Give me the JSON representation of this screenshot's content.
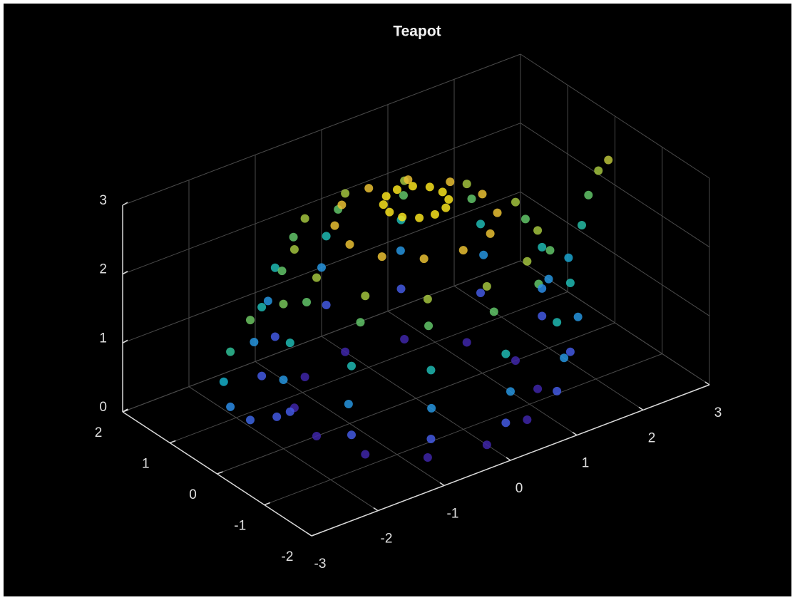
{
  "chart_data": {
    "type": "scatter3",
    "title": "Teapot",
    "x": [
      1.5,
      1.3,
      0.75,
      0,
      -0.75,
      -1.3,
      -1.5,
      -1.3,
      -0.75,
      0,
      0.75,
      1.3,
      1.9,
      1.65,
      0.95,
      0,
      -0.95,
      -1.65,
      -1.9,
      -1.65,
      -0.95,
      0,
      0.95,
      1.65,
      2,
      1.73,
      1,
      0,
      -1,
      -1.73,
      -2,
      -1.73,
      -1,
      0,
      1,
      1.73,
      1.9,
      1.65,
      0.95,
      0,
      -0.95,
      -1.65,
      -1.9,
      -1.65,
      -0.95,
      0,
      0.95,
      1.65,
      1.65,
      1.43,
      0.83,
      0,
      -0.83,
      -1.43,
      -1.65,
      -1.43,
      -0.83,
      0,
      0.83,
      1.43,
      1.5,
      1.3,
      0.75,
      0,
      -0.75,
      -1.3,
      -1.5,
      -1.3,
      -0.75,
      0,
      0.75,
      1.3,
      1,
      0.87,
      0.5,
      0,
      -0.5,
      -0.87,
      -1,
      -0.87,
      -0.5,
      0,
      0.5,
      0.87,
      0.4,
      0.35,
      0.2,
      0,
      -0.2,
      -0.35,
      -0.4,
      -0.35,
      -0.2,
      0,
      0.2,
      0.35,
      -2,
      -2.5,
      -2.8,
      -2.9,
      -2.8,
      -2.5,
      -2.1,
      1.9,
      2.3,
      2.5,
      2.6,
      2.75,
      2.9
    ],
    "y": [
      0,
      0.75,
      1.3,
      1.5,
      1.3,
      0.75,
      0,
      -0.75,
      -1.3,
      -1.5,
      -1.3,
      -0.75,
      0,
      0.95,
      1.65,
      1.9,
      1.65,
      0.95,
      0,
      -0.95,
      -1.65,
      -1.9,
      -1.65,
      -0.95,
      0,
      1,
      1.73,
      2,
      1.73,
      1,
      0,
      -1,
      -1.73,
      -2,
      -1.73,
      -1,
      0,
      0.95,
      1.65,
      1.9,
      1.65,
      0.95,
      0,
      -0.95,
      -1.65,
      -1.9,
      -1.65,
      -0.95,
      0,
      0.83,
      1.43,
      1.65,
      1.43,
      0.83,
      0,
      -0.83,
      -1.43,
      -1.65,
      -1.43,
      -0.83,
      0,
      0.75,
      1.3,
      1.5,
      1.3,
      0.75,
      0,
      -0.75,
      -1.3,
      -1.5,
      -1.3,
      -0.75,
      0,
      0.5,
      0.87,
      1,
      0.87,
      0.5,
      0,
      -0.5,
      -0.87,
      -1,
      -0.87,
      -0.5,
      0,
      0.2,
      0.35,
      0.4,
      0.35,
      0.2,
      0,
      -0.2,
      -0.35,
      -0.4,
      -0.35,
      -0.2,
      0,
      0,
      0,
      0,
      0,
      0,
      0,
      0,
      0,
      0,
      0,
      0,
      0
    ],
    "z": [
      0,
      0,
      0,
      0,
      0,
      0,
      0,
      0,
      0,
      0,
      0,
      0,
      0.5,
      0.5,
      0.5,
      0.5,
      0.5,
      0.5,
      0.5,
      0.5,
      0.5,
      0.5,
      0.5,
      0.5,
      1,
      1,
      1,
      1,
      1,
      1,
      1,
      1,
      1,
      1,
      1,
      1,
      1.5,
      1.5,
      1.5,
      1.5,
      1.5,
      1.5,
      1.5,
      1.5,
      1.5,
      1.5,
      1.5,
      1.5,
      2,
      2,
      2,
      2,
      2,
      2,
      2,
      2,
      2,
      2,
      2,
      2,
      2.3,
      2.3,
      2.3,
      2.3,
      2.3,
      2.3,
      2.3,
      2.3,
      2.3,
      2.3,
      2.3,
      2.3,
      2.6,
      2.6,
      2.6,
      2.6,
      2.6,
      2.6,
      2.6,
      2.6,
      2.6,
      2.6,
      2.6,
      2.6,
      2.85,
      2.85,
      2.85,
      2.85,
      2.85,
      2.85,
      2.85,
      2.85,
      2.85,
      2.85,
      2.85,
      2.85,
      2.1,
      2.05,
      1.7,
      1.3,
      0.9,
      0.6,
      0.5,
      0.9,
      1.2,
      1.6,
      2.0,
      2.3,
      2.4
    ],
    "xlim": [
      -3,
      3
    ],
    "ylim": [
      -2,
      2
    ],
    "zlim": [
      0,
      3
    ],
    "xticks": [
      -3,
      -2,
      -1,
      0,
      1,
      2,
      3
    ],
    "yticks": [
      -2,
      -1,
      0,
      1,
      2
    ],
    "zticks": [
      0,
      1,
      2,
      3
    ],
    "grid": true,
    "colormap": "parula"
  }
}
